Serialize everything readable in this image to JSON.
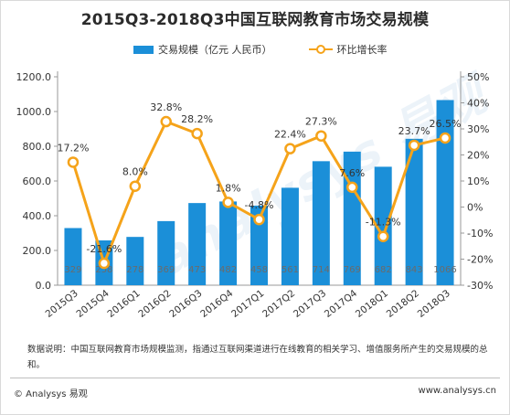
{
  "title": "2015Q3-2018Q3中国互联网教育市场交易规模",
  "legend": {
    "bar_label": "交易规模（亿元 人民币）",
    "line_label": "环比增长率"
  },
  "colors": {
    "bar": "#1b8fd8",
    "line": "#f5a31a",
    "axis": "#999999",
    "text": "#333333"
  },
  "chart_data": {
    "type": "bar+line",
    "categories": [
      "2015Q3",
      "2015Q4",
      "2016Q1",
      "2016Q2",
      "2016Q3",
      "2016Q4",
      "2017Q1",
      "2017Q2",
      "2017Q3",
      "2017Q4",
      "2018Q1",
      "2018Q2",
      "2018Q3"
    ],
    "series": [
      {
        "name": "交易规模（亿元 人民币）",
        "type": "bar",
        "axis": "left",
        "values": [
          329,
          258,
          278,
          369,
          473,
          482,
          458,
          561,
          714,
          769,
          682,
          843,
          1066
        ],
        "labels": [
          "329",
          "258",
          "278",
          "369",
          "473",
          "482",
          "458",
          "561",
          "714",
          "769",
          "682",
          "843",
          "1066"
        ]
      },
      {
        "name": "环比增长率",
        "type": "line",
        "axis": "right",
        "values": [
          17.2,
          -21.6,
          8.0,
          32.8,
          28.2,
          1.8,
          -4.8,
          22.4,
          27.3,
          7.6,
          -11.3,
          23.7,
          26.5
        ],
        "labels": [
          "17.2%",
          "-21.6%",
          "8.0%",
          "32.8%",
          "28.2%",
          "1.8%",
          "-4.8%",
          "22.4%",
          "27.3%",
          "7.6%",
          "-11.3%",
          "23.7%",
          "26.5%"
        ]
      }
    ],
    "left_axis": {
      "ylim": [
        0,
        1200
      ],
      "ticks": [
        "0.0",
        "200.0",
        "400.0",
        "600.0",
        "800.0",
        "1000.0",
        "1200.0"
      ]
    },
    "right_axis": {
      "ylim": [
        -30,
        50
      ],
      "ticks": [
        "-30%",
        "-20%",
        "-10%",
        "0%",
        "10%",
        "20%",
        "30%",
        "40%",
        "50%"
      ]
    },
    "grid": false,
    "legend_position": "top"
  },
  "note": "数据说明：中国互联网教育市场规模监测，指通过互联网渠道进行在线教育的相关学习、增值服务所产生的交易规模的总和。",
  "footer": {
    "brand": "© Analysys 易观",
    "url": "www.analysys.cn"
  },
  "watermark": "analysys 易观"
}
